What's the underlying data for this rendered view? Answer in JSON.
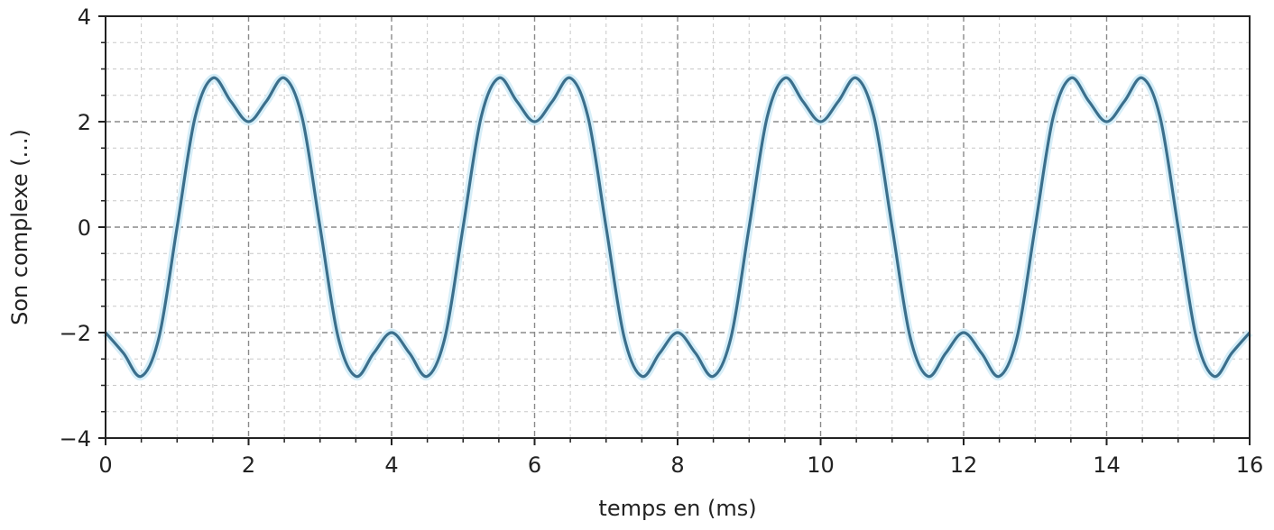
{
  "chart_data": {
    "type": "line",
    "title": "",
    "xlabel": "temps en (ms)",
    "ylabel": "Son complexe (...)",
    "xlim": [
      0,
      16
    ],
    "ylim": [
      -4,
      4
    ],
    "xticks": [
      "0",
      "2",
      "4",
      "6",
      "8",
      "10",
      "12",
      "14",
      "16"
    ],
    "yticks": [
      "−4",
      "−2",
      "0",
      "2",
      "4"
    ],
    "xtick_values": [
      0,
      2,
      4,
      6,
      8,
      10,
      12,
      14,
      16
    ],
    "ytick_values": [
      -4,
      -2,
      0,
      2,
      4
    ],
    "minor_step": 0.5,
    "grid": true,
    "color": "#3b6f8c",
    "series": [
      {
        "x_start": 0,
        "x_step": 0.25,
        "values": [
          -2,
          -2.389,
          -2.828,
          -2.072,
          0,
          2.072,
          2.828,
          2.389,
          2,
          2.389,
          2.828,
          2.072,
          0,
          -2.072,
          -2.828,
          -2.389,
          -2,
          -2.389,
          -2.828,
          -2.072,
          0,
          2.072,
          2.828,
          2.389,
          2,
          2.389,
          2.828,
          2.072,
          0,
          -2.072,
          -2.828,
          -2.389,
          -2,
          -2.389,
          -2.828,
          -2.072,
          0,
          2.072,
          2.828,
          2.389,
          2,
          2.389,
          2.828,
          2.072,
          0,
          -2.072,
          -2.828,
          -2.389,
          -2,
          -2.389,
          -2.828,
          -2.072,
          0,
          2.072,
          2.828,
          2.389,
          2,
          2.389,
          2.828,
          2.072,
          0,
          -2.072,
          -2.828,
          -2.389,
          -2
        ]
      }
    ]
  }
}
